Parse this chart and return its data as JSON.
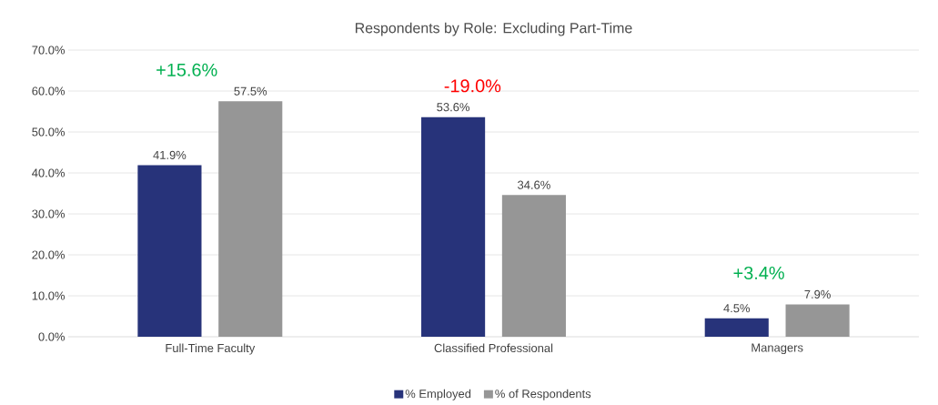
{
  "chart_data": {
    "type": "bar",
    "title": "Respondents by Role: Excluding Part-Time",
    "categories": [
      "Full-Time Faculty",
      "Classified Professional",
      "Managers"
    ],
    "series": [
      {
        "name": "% Employed",
        "color": "#27337a",
        "values": [
          41.9,
          53.6,
          4.5
        ],
        "value_labels": [
          "41.9%",
          "53.6%",
          "4.5%"
        ]
      },
      {
        "name": "% of Respondents",
        "color": "#969696",
        "values": [
          57.5,
          34.6,
          7.9
        ],
        "value_labels": [
          "57.5%",
          "34.6%",
          "7.9%"
        ]
      }
    ],
    "ylim": [
      0,
      70
    ],
    "yticks": [
      {
        "value": 0,
        "label": "0.0%"
      },
      {
        "value": 10,
        "label": "10.0%"
      },
      {
        "value": 20,
        "label": "20.0%"
      },
      {
        "value": 30,
        "label": "30.0%"
      },
      {
        "value": 40,
        "label": "40.0%"
      },
      {
        "value": 50,
        "label": "50.0%"
      },
      {
        "value": 60,
        "label": "60.0%"
      },
      {
        "value": 70,
        "label": "70.0%"
      }
    ],
    "annotations": [
      "+15.6%",
      "-19.0%",
      "+3.4%"
    ],
    "grid": "y",
    "legend": "bottom"
  }
}
